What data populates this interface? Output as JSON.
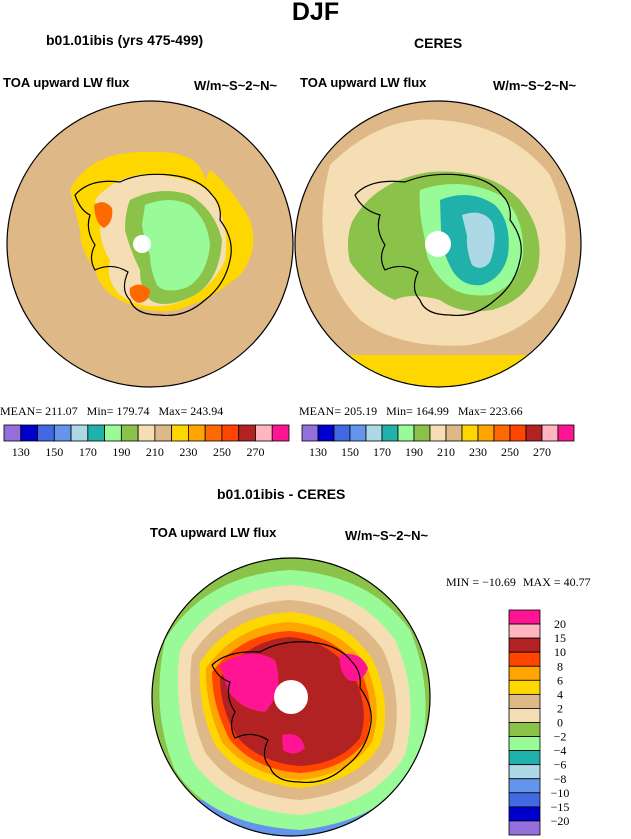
{
  "figure": {
    "title": "DJF"
  },
  "chart_data": [
    {
      "type": "heatmap",
      "projection": "south-polar-stereographic",
      "title": "b01.01ibis (yrs 475-499)",
      "left_label": "TOA upward LW flux",
      "right_label": "W/m~S~2~N~",
      "stats": {
        "mean_label": "MEAN=",
        "mean": "211.07",
        "min_label": "Min=",
        "min": "179.74",
        "max_label": "Max=",
        "max": "243.94"
      },
      "colorbar": {
        "orientation": "horizontal",
        "colors": [
          "#9370db",
          "#0000cd",
          "#4169e1",
          "#6495ed",
          "#add8e6",
          "#20b2aa",
          "#98fb98",
          "#8bc34a",
          "#f5deb3",
          "#deb887",
          "#ffd700",
          "#ffa500",
          "#ff6a00",
          "#ff4500",
          "#b22222",
          "#ffb6c1",
          "#ff1493"
        ],
        "tick_labels": [
          "130",
          "150",
          "170",
          "190",
          "210",
          "230",
          "250",
          "270"
        ]
      }
    },
    {
      "type": "heatmap",
      "projection": "south-polar-stereographic",
      "title": "CERES",
      "left_label": "TOA upward LW flux",
      "right_label": "W/m~S~2~N~",
      "stats": {
        "mean_label": "MEAN=",
        "mean": "205.19",
        "min_label": "Min=",
        "min": "164.99",
        "max_label": "Max=",
        "max": "223.66"
      },
      "colorbar": {
        "orientation": "horizontal",
        "colors": [
          "#9370db",
          "#0000cd",
          "#4169e1",
          "#6495ed",
          "#add8e6",
          "#20b2aa",
          "#98fb98",
          "#8bc34a",
          "#f5deb3",
          "#deb887",
          "#ffd700",
          "#ffa500",
          "#ff6a00",
          "#ff4500",
          "#b22222",
          "#ffb6c1",
          "#ff1493"
        ],
        "tick_labels": [
          "130",
          "150",
          "170",
          "190",
          "210",
          "230",
          "250",
          "270"
        ]
      }
    },
    {
      "type": "heatmap",
      "projection": "south-polar-stereographic",
      "title": "b01.01ibis - CERES",
      "left_label": "TOA upward LW flux",
      "right_label": "W/m~S~2~N~",
      "stats": {
        "min_label": "MIN =",
        "min": "−10.69",
        "max_label": "MAX =",
        "max": "40.77"
      },
      "colorbar": {
        "orientation": "vertical",
        "levels": [
          "20",
          "15",
          "10",
          "8",
          "6",
          "4",
          "2",
          "0",
          "−2",
          "−4",
          "−6",
          "−8",
          "−10",
          "−15",
          "−20"
        ],
        "colors": [
          "#ff1493",
          "#ffb6c1",
          "#b22222",
          "#ff4500",
          "#ffa500",
          "#ffd700",
          "#deb887",
          "#f5deb3",
          "#8bc34a",
          "#98fb98",
          "#20b2aa",
          "#add8e6",
          "#6495ed",
          "#4169e1",
          "#0000cd",
          "#9370db"
        ]
      }
    }
  ]
}
